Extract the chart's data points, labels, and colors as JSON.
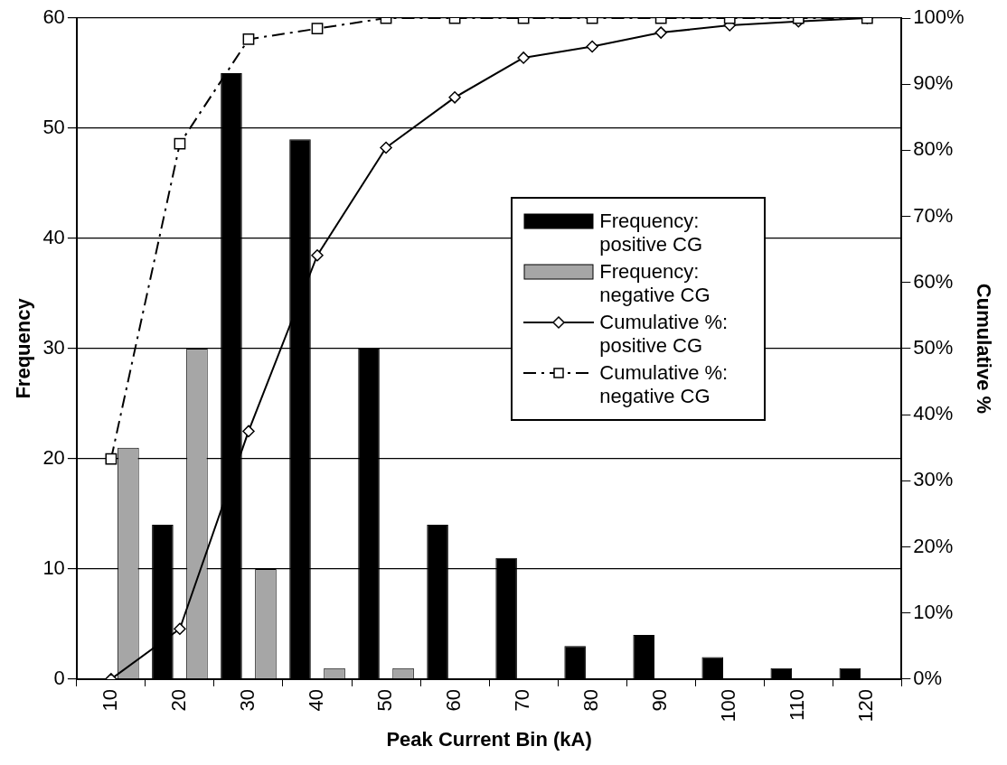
{
  "chart_data": {
    "type": "bar",
    "xlabel": "Peak Current Bin (kA)",
    "ylabel": "Frequency",
    "y2label": "Cumulative %",
    "categories": [
      "10",
      "20",
      "30",
      "40",
      "50",
      "60",
      "70",
      "80",
      "90",
      "100",
      "110",
      "120"
    ],
    "series": [
      {
        "name": "Frequency: positive CG",
        "color": "#000000",
        "values": [
          0,
          14,
          55,
          49,
          30,
          14,
          11,
          3,
          4,
          2,
          1,
          1
        ]
      },
      {
        "name": "Frequency: negative CG",
        "color": "#a6a6a6",
        "values": [
          21,
          30,
          10,
          1,
          1,
          0,
          0,
          0,
          0,
          0,
          0,
          0
        ]
      },
      {
        "name": "Cumulative %: positive CG",
        "type": "line",
        "axis": "y2",
        "color": "#000000",
        "marker": "diamond",
        "line_style": "solid",
        "values": [
          0,
          7.6,
          37.5,
          64.1,
          80.4,
          88,
          94,
          95.7,
          97.8,
          98.9,
          99.5,
          100
        ]
      },
      {
        "name": "Cumulative %: negative CG",
        "type": "line",
        "axis": "y2",
        "color": "#000000",
        "marker": "square",
        "line_style": "dashed",
        "values": [
          33.3,
          81,
          96.8,
          98.4,
          100,
          100,
          100,
          100,
          100,
          100,
          100,
          100
        ]
      }
    ],
    "ylim": [
      0,
      60
    ],
    "yticks": [
      0,
      10,
      20,
      30,
      40,
      50,
      60
    ],
    "y2lim": [
      0,
      100
    ],
    "y2ticks": [
      {
        "value": 0,
        "label": "0%"
      },
      {
        "value": 10,
        "label": "10%"
      },
      {
        "value": 20,
        "label": "20%"
      },
      {
        "value": 30,
        "label": "30%"
      },
      {
        "value": 40,
        "label": "40%"
      },
      {
        "value": 50,
        "label": "50%"
      },
      {
        "value": 60,
        "label": "60%"
      },
      {
        "value": 70,
        "label": "70%"
      },
      {
        "value": 80,
        "label": "80%"
      },
      {
        "value": 90,
        "label": "90%"
      },
      {
        "value": 100,
        "label": "100%"
      }
    ],
    "grid": "y",
    "legend": "right"
  }
}
